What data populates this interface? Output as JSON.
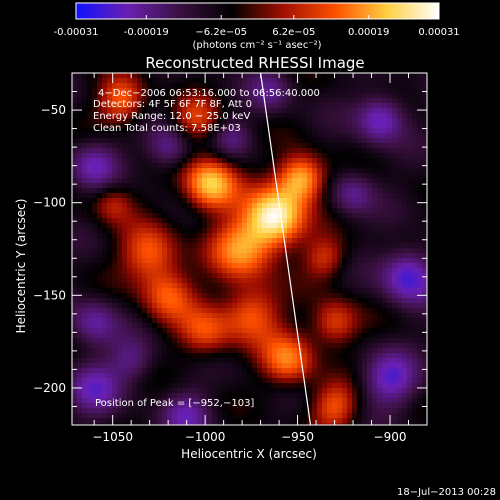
{
  "colorbar": {
    "tick_labels": [
      "-0.00031",
      "-0.00019",
      "−6.2e−05",
      "6.2e−05",
      "0.00019",
      "0.00031"
    ],
    "tick_values": [
      -0.00031,
      -0.00019,
      -6.2e-05,
      6.2e-05,
      0.00019,
      0.00031
    ],
    "range": [
      -0.00031,
      0.00031
    ],
    "unit_label": "(photons cm⁻² s⁻¹ asec⁻²)",
    "colors": [
      "#1010ff",
      "#6a20b0",
      "#3a1040",
      "#000000",
      "#a01000",
      "#ff5000",
      "#ffd040",
      "#ffffff"
    ]
  },
  "chart_data": {
    "type": "heatmap",
    "title": "Reconstructed RHESSI Image",
    "xlabel": "Heliocentric X (arcsec)",
    "ylabel": "Heliocentric Y (arcsec)",
    "xlim": [
      -1072,
      -880
    ],
    "ylim": [
      -220,
      -30
    ],
    "xticks": [
      -1050,
      -1000,
      -950,
      -900
    ],
    "yticks": [
      -50,
      -100,
      -150,
      -200
    ],
    "xtick_labels": [
      "−1050",
      "−1000",
      "−950",
      "−900"
    ],
    "ytick_labels": [
      "−50",
      "−100",
      "−150",
      "−200"
    ],
    "info_lines": [
      "4−Dec−2006 06:53:16.000 to 06:56:40.000",
      "Detectors: 4F 5F 6F 7F 8F, Att 0",
      "Energy Range: 12.0 − 25.0 keV",
      "Clean    Total counts: 7.58E+03"
    ],
    "peak_label": "Position of Peak = [−952,−103]",
    "peak_position": [
      -952,
      -103
    ],
    "limb_line": [
      [
        -970,
        -30
      ],
      [
        -943,
        -220
      ]
    ],
    "emission_sources": [
      {
        "x": -962,
        "y": -108,
        "amplitude": 1.0,
        "sigma": 11
      },
      {
        "x": -997,
        "y": -90,
        "amplitude": 0.85,
        "sigma": 10
      },
      {
        "x": -948,
        "y": -87,
        "amplitude": 0.8,
        "sigma": 9
      },
      {
        "x": -980,
        "y": -125,
        "amplitude": 0.65,
        "sigma": 12
      },
      {
        "x": -1030,
        "y": -128,
        "amplitude": 0.55,
        "sigma": 11
      },
      {
        "x": -1020,
        "y": -150,
        "amplitude": 0.5,
        "sigma": 10
      },
      {
        "x": -975,
        "y": -160,
        "amplitude": 0.55,
        "sigma": 11
      },
      {
        "x": -1000,
        "y": -170,
        "amplitude": 0.45,
        "sigma": 10
      },
      {
        "x": -955,
        "y": -185,
        "amplitude": 0.6,
        "sigma": 10
      },
      {
        "x": -930,
        "y": -165,
        "amplitude": 0.5,
        "sigma": 9
      },
      {
        "x": -930,
        "y": -210,
        "amplitude": 0.5,
        "sigma": 9
      },
      {
        "x": -1045,
        "y": -45,
        "amplitude": 0.55,
        "sigma": 9
      },
      {
        "x": -1005,
        "y": -55,
        "amplitude": 0.4,
        "sigma": 9
      },
      {
        "x": -935,
        "y": -130,
        "amplitude": 0.4,
        "sigma": 8
      },
      {
        "x": -1050,
        "y": -100,
        "amplitude": 0.35,
        "sigma": 8
      },
      {
        "x": -905,
        "y": -55,
        "amplitude": -0.6,
        "sigma": 9
      },
      {
        "x": -890,
        "y": -140,
        "amplitude": -0.7,
        "sigma": 10
      },
      {
        "x": -900,
        "y": -195,
        "amplitude": -0.6,
        "sigma": 10
      },
      {
        "x": -1060,
        "y": -200,
        "amplitude": -0.5,
        "sigma": 10
      },
      {
        "x": -1060,
        "y": -165,
        "amplitude": -0.45,
        "sigma": 9
      },
      {
        "x": -1060,
        "y": -80,
        "amplitude": -0.5,
        "sigma": 9
      },
      {
        "x": -1020,
        "y": -70,
        "amplitude": -0.45,
        "sigma": 8
      },
      {
        "x": -920,
        "y": -95,
        "amplitude": -0.4,
        "sigma": 8
      },
      {
        "x": -1010,
        "y": -215,
        "amplitude": -0.45,
        "sigma": 9
      },
      {
        "x": -1040,
        "y": -185,
        "amplitude": -0.35,
        "sigma": 8
      },
      {
        "x": -965,
        "y": -40,
        "amplitude": -0.35,
        "sigma": 8
      },
      {
        "x": -985,
        "y": -65,
        "amplitude": -0.3,
        "sigma": 7
      }
    ]
  },
  "footer": {
    "timestamp": "18−Jul−2013 00:28"
  }
}
